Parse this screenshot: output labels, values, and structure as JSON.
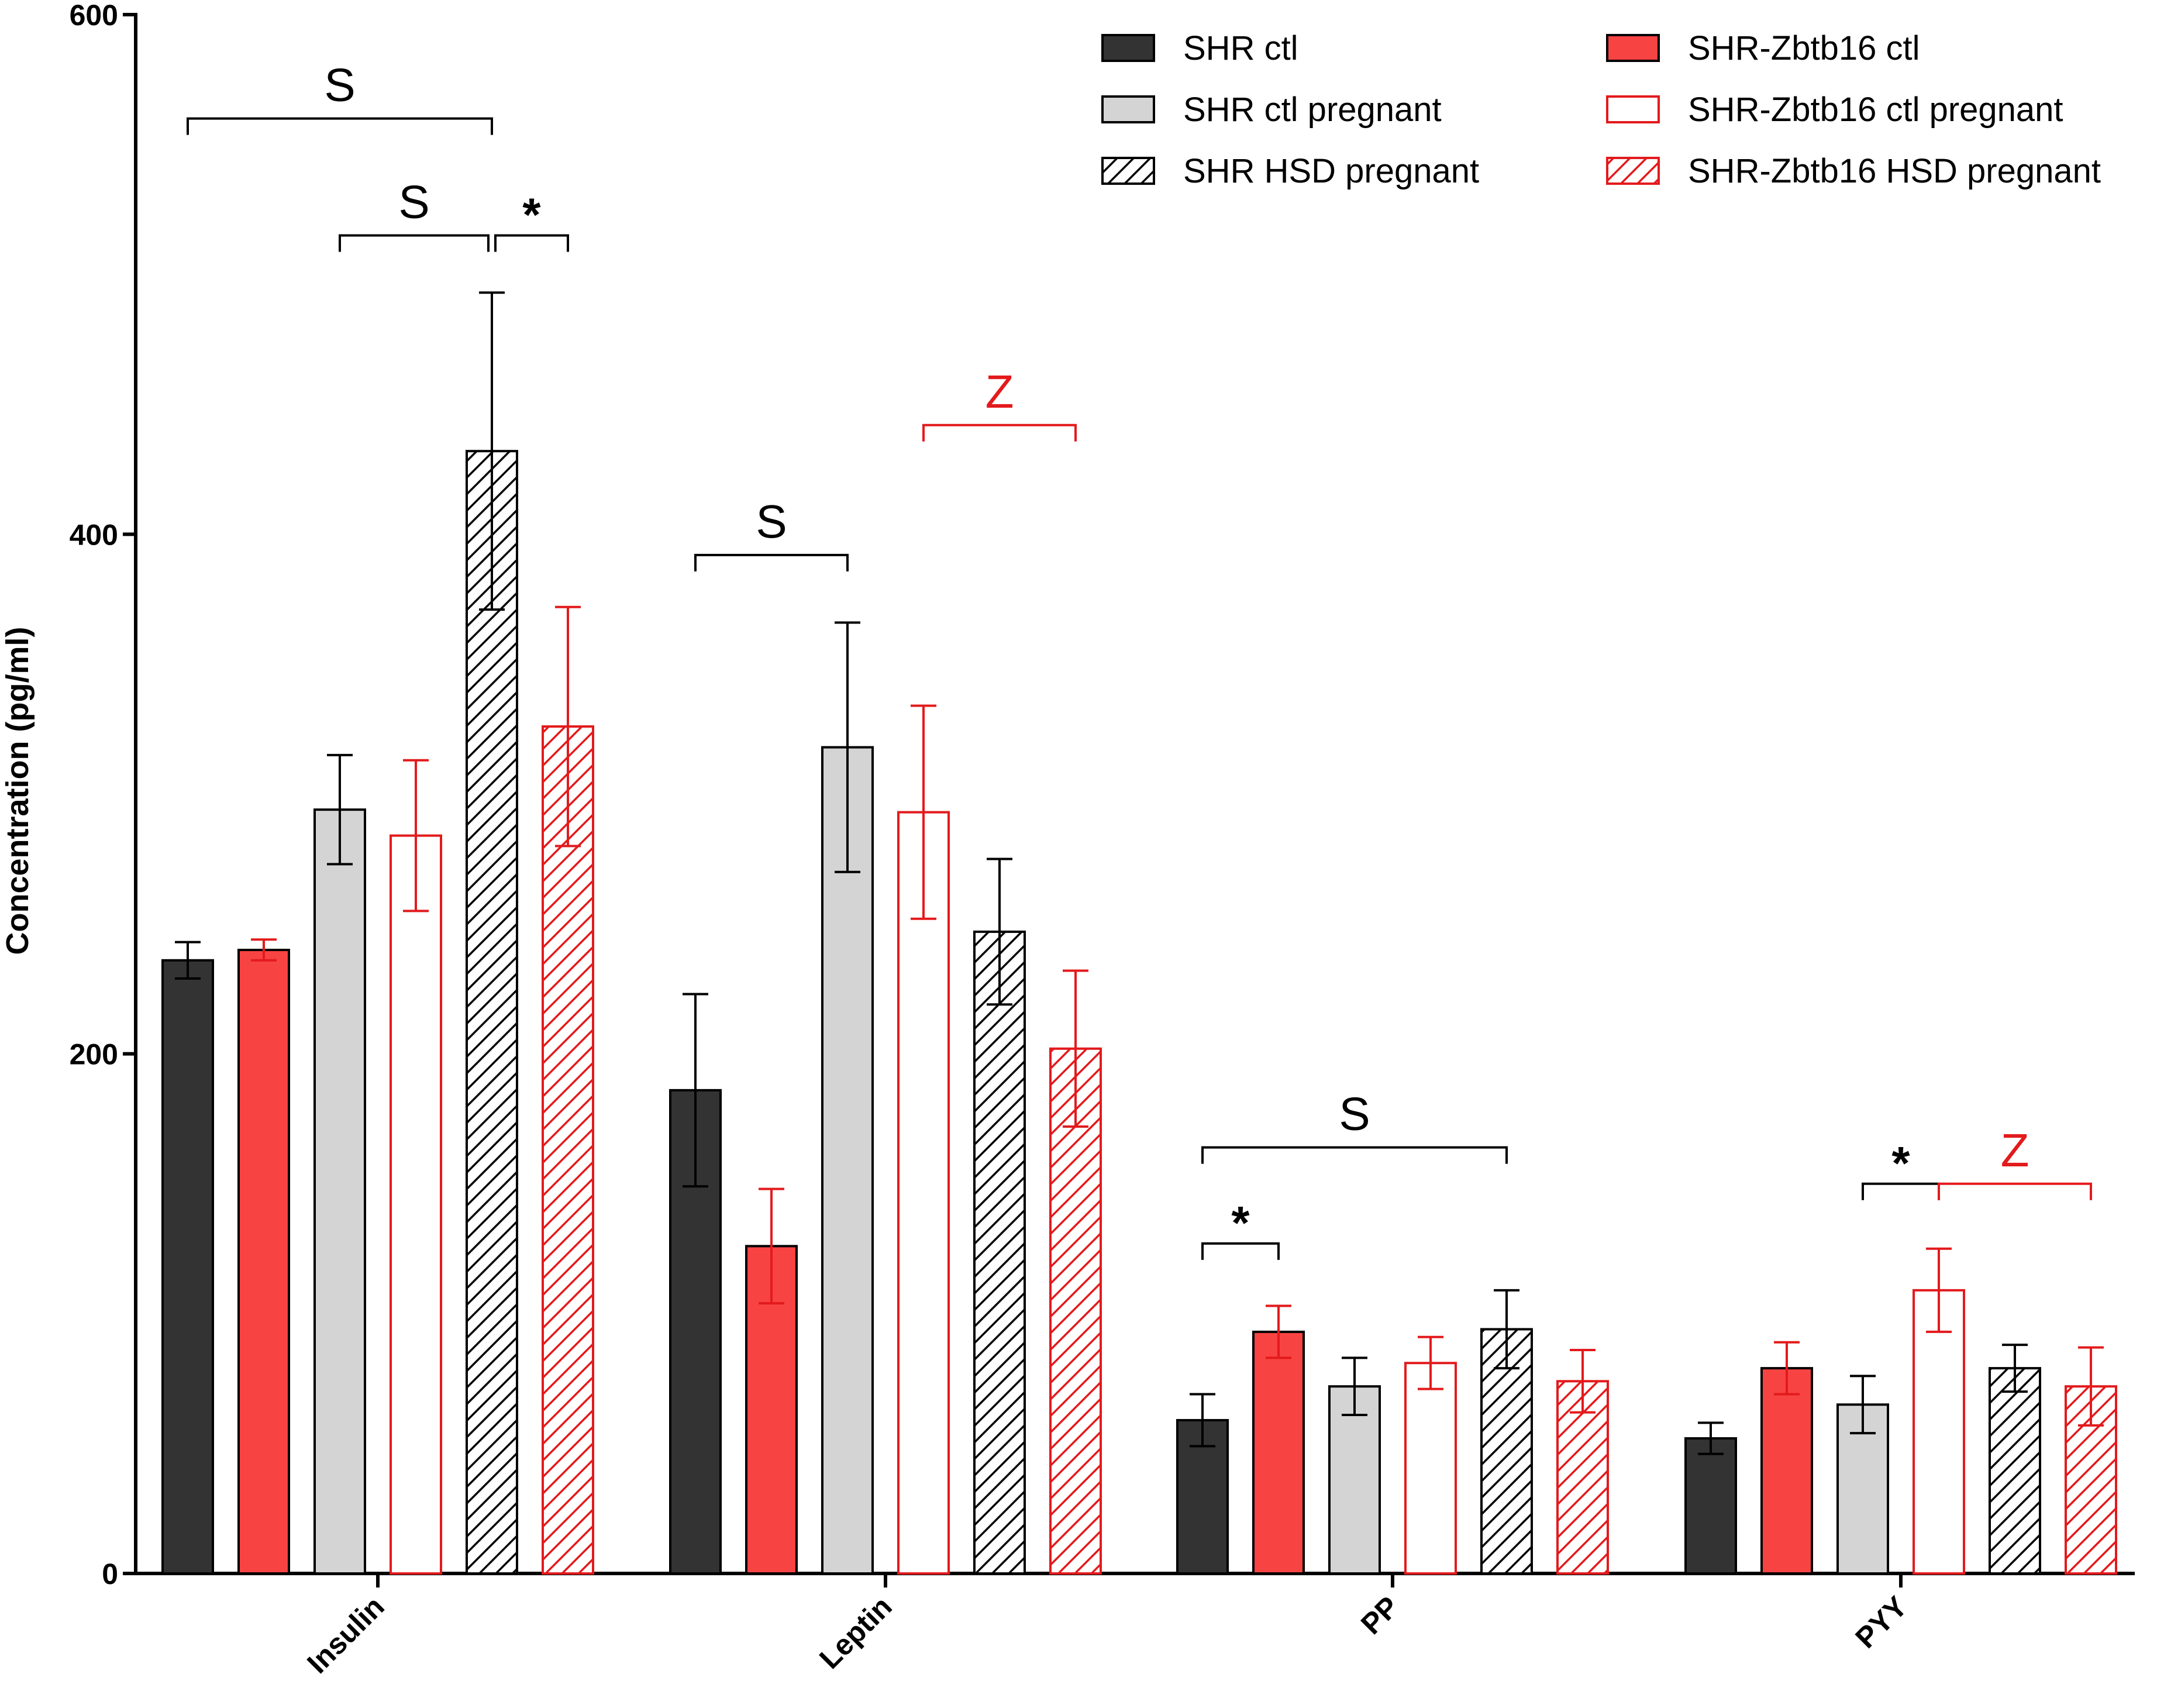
{
  "chart_data": {
    "type": "bar",
    "title": "",
    "xlabel": "",
    "ylabel": "Concentration (pg/ml)",
    "ylim": [
      0,
      600
    ],
    "yticks": [
      0,
      200,
      400,
      600
    ],
    "categories": [
      "Insulin",
      "Leptin",
      "PP",
      "PYY"
    ],
    "series": [
      {
        "name": "SHR ctl",
        "color": "#333333",
        "fill": "solid",
        "values": [
          236,
          186,
          59,
          52
        ],
        "errors": [
          7,
          37,
          10,
          6
        ]
      },
      {
        "name": "SHR-Zbtb16 ctl",
        "color": "#f84343",
        "fill": "solid",
        "values": [
          240,
          126,
          93,
          79
        ],
        "errors": [
          4,
          22,
          10,
          10
        ]
      },
      {
        "name": "SHR ctl pregnant",
        "color": "#d4d4d4",
        "edge": "#000000",
        "fill": "solid",
        "values": [
          294,
          318,
          72,
          65
        ],
        "errors": [
          21,
          48,
          11,
          11
        ]
      },
      {
        "name": "SHR-Zbtb16 ctl pregnant",
        "color": "#ffffff",
        "edge": "#e31a1c",
        "fill": "open",
        "values": [
          284,
          293,
          81,
          109
        ],
        "errors": [
          29,
          41,
          10,
          16
        ]
      },
      {
        "name": "SHR HSD pregnant",
        "color": "#000000",
        "edge": "#000000",
        "fill": "hatch",
        "values": [
          432,
          247,
          94,
          79
        ],
        "errors": [
          61,
          28,
          15,
          9
        ]
      },
      {
        "name": "SHR-Zbtb16 HSD pregnant",
        "color": "#e31a1c",
        "edge": "#e31a1c",
        "fill": "hatch",
        "values": [
          326,
          202,
          74,
          72
        ],
        "errors": [
          46,
          30,
          12,
          15
        ]
      }
    ],
    "legend_position": "top-right",
    "legend_order": [
      0,
      2,
      4,
      1,
      3,
      5
    ],
    "significance": [
      {
        "label": "S",
        "color": "#000000",
        "category": 0,
        "from_series": 0,
        "to_series": 4,
        "bracket_y": 560
      },
      {
        "label": "S",
        "color": "#000000",
        "category": 0,
        "from_series": 2,
        "to_series": 4,
        "bracket_y": 515
      },
      {
        "label": "*",
        "color": "#000000",
        "category": 0,
        "from_series": 4,
        "to_series": 5,
        "bracket_y": 515
      },
      {
        "label": "Z",
        "color": "#e31a1c",
        "category": 1,
        "from_series": 3,
        "to_series": 5,
        "bracket_y": 442
      },
      {
        "label": "S",
        "color": "#000000",
        "category": 1,
        "from_series": 0,
        "to_series": 2,
        "bracket_y": 392
      },
      {
        "label": "S",
        "color": "#000000",
        "category": 2,
        "from_series": 0,
        "to_series": 4,
        "bracket_y": 164
      },
      {
        "label": "*",
        "color": "#000000",
        "category": 2,
        "from_series": 0,
        "to_series": 1,
        "bracket_y": 127
      },
      {
        "label": "*",
        "color": "#000000",
        "category": 3,
        "from_series": 2,
        "to_series": 3,
        "bracket_y": 150
      },
      {
        "label": "Z",
        "color": "#e31a1c",
        "category": 3,
        "from_series": 3,
        "to_series": 5,
        "bracket_y": 150
      }
    ]
  }
}
